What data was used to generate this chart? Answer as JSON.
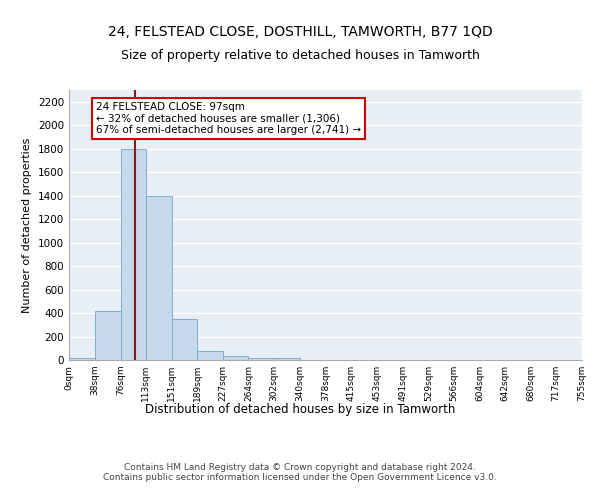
{
  "title": "24, FELSTEAD CLOSE, DOSTHILL, TAMWORTH, B77 1QD",
  "subtitle": "Size of property relative to detached houses in Tamworth",
  "xlabel": "Distribution of detached houses by size in Tamworth",
  "ylabel": "Number of detached properties",
  "bin_edges": [
    0,
    38,
    76,
    113,
    151,
    189,
    227,
    264,
    302,
    340,
    378,
    415,
    453,
    491,
    529,
    566,
    604,
    642,
    680,
    717,
    755
  ],
  "bin_labels": [
    "0sqm",
    "38sqm",
    "76sqm",
    "113sqm",
    "151sqm",
    "189sqm",
    "227sqm",
    "264sqm",
    "302sqm",
    "340sqm",
    "378sqm",
    "415sqm",
    "453sqm",
    "491sqm",
    "529sqm",
    "566sqm",
    "604sqm",
    "642sqm",
    "680sqm",
    "717sqm",
    "755sqm"
  ],
  "bar_heights": [
    20,
    420,
    1800,
    1400,
    350,
    80,
    30,
    20,
    20,
    0,
    0,
    0,
    0,
    0,
    0,
    0,
    0,
    0,
    0,
    0
  ],
  "bar_color": "#c5d9ea",
  "bar_edgecolor": "#7bafd4",
  "ylim": [
    0,
    2300
  ],
  "yticks": [
    0,
    200,
    400,
    600,
    800,
    1000,
    1200,
    1400,
    1600,
    1800,
    2000,
    2200
  ],
  "property_size": 97,
  "vline_color": "#8b1a1a",
  "annotation_text": "24 FELSTEAD CLOSE: 97sqm\n← 32% of detached houses are smaller (1,306)\n67% of semi-detached houses are larger (2,741) →",
  "annotation_box_color": "#ffffff",
  "annotation_box_edgecolor": "#cc0000",
  "footer_text": "Contains HM Land Registry data © Crown copyright and database right 2024.\nContains public sector information licensed under the Open Government Licence v3.0.",
  "bg_color": "#e8eef5",
  "grid_color": "#ffffff",
  "title_fontsize": 10,
  "subtitle_fontsize": 9,
  "ylabel_fontsize": 8,
  "xlabel_fontsize": 8.5
}
